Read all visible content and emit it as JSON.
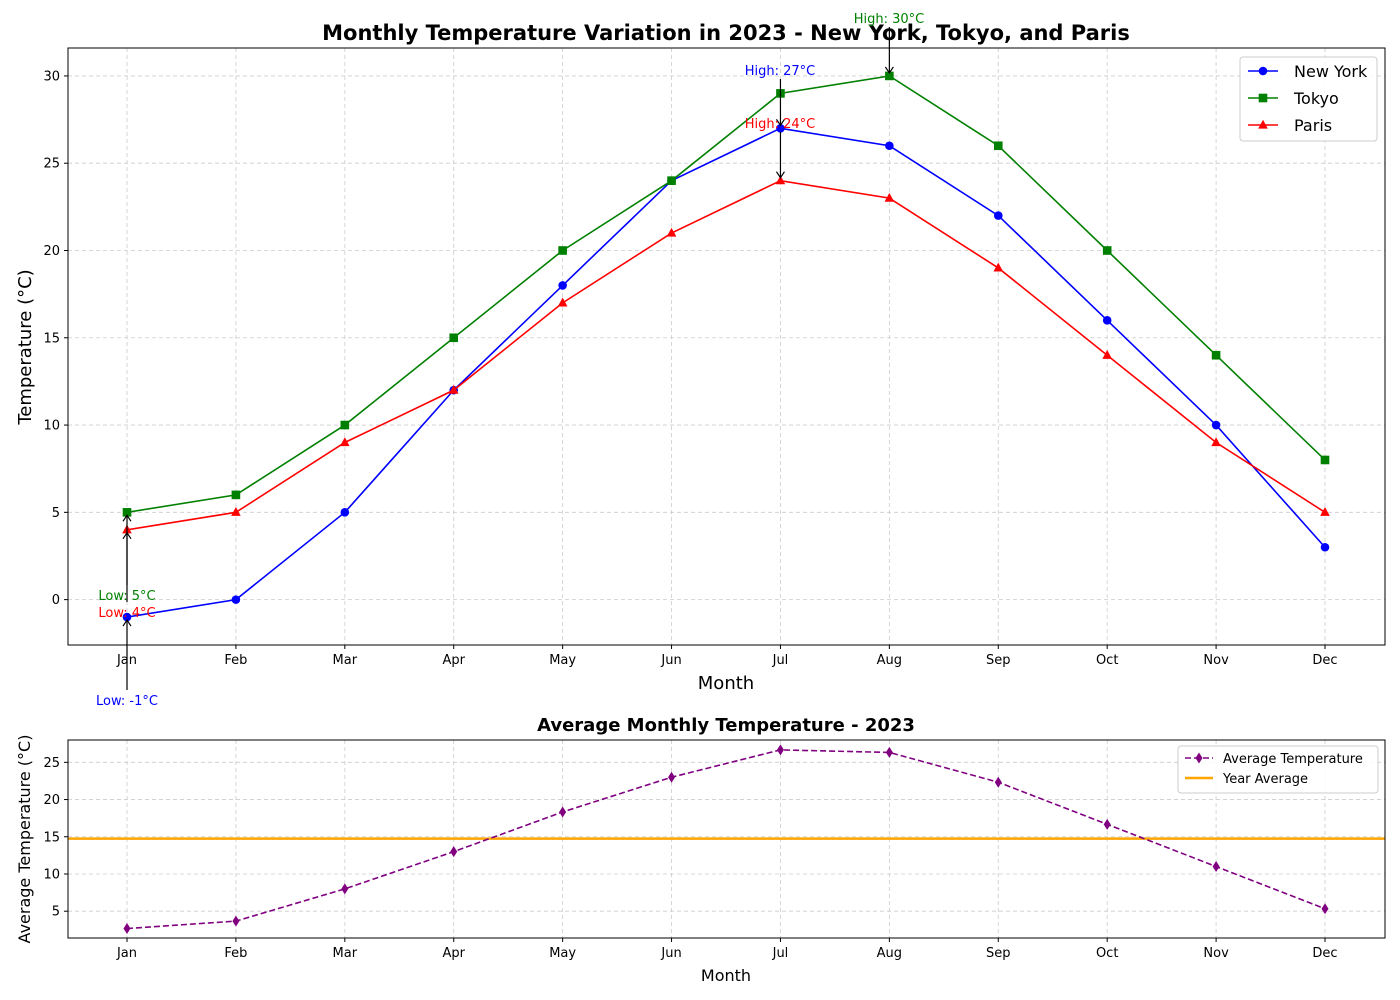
{
  "chart_data": [
    {
      "type": "line",
      "title": "Monthly Temperature Variation in 2023 - New York, Tokyo, and Paris",
      "xlabel": "Month",
      "ylabel": "Temperature (°C)",
      "categories": [
        "Jan",
        "Feb",
        "Mar",
        "Apr",
        "May",
        "Jun",
        "Jul",
        "Aug",
        "Sep",
        "Oct",
        "Nov",
        "Dec"
      ],
      "ylim": [
        -2.6,
        31.6
      ],
      "yticks": [
        0,
        5,
        10,
        15,
        20,
        25,
        30
      ],
      "grid": true,
      "legend_position": "top-right",
      "series": [
        {
          "name": "New York",
          "color": "#0000ff",
          "marker": "circle",
          "values": [
            -1,
            0,
            5,
            12,
            18,
            24,
            27,
            26,
            22,
            16,
            10,
            3
          ]
        },
        {
          "name": "Tokyo",
          "color": "#008000",
          "marker": "square",
          "values": [
            5,
            6,
            10,
            15,
            20,
            24,
            29,
            30,
            26,
            20,
            14,
            8
          ]
        },
        {
          "name": "Paris",
          "color": "#ff0000",
          "marker": "triangle",
          "values": [
            4,
            5,
            9,
            12,
            17,
            21,
            24,
            23,
            19,
            14,
            9,
            5
          ]
        }
      ],
      "annotations": [
        {
          "text": "High: 27°C",
          "series": "New York",
          "month": "Jul",
          "value": 27,
          "kind": "high",
          "color": "#0000ff"
        },
        {
          "text": "High: 30°C",
          "series": "Tokyo",
          "month": "Aug",
          "value": 30,
          "kind": "high",
          "color": "#008000"
        },
        {
          "text": "High: 24°C",
          "series": "Paris",
          "month": "Jul",
          "value": 24,
          "kind": "high",
          "color": "#ff0000"
        },
        {
          "text": "Low: -1°C",
          "series": "New York",
          "month": "Jan",
          "value": -1,
          "kind": "low",
          "color": "#0000ff"
        },
        {
          "text": "Low: 5°C",
          "series": "Tokyo",
          "month": "Jan",
          "value": 5,
          "kind": "low",
          "color": "#008000"
        },
        {
          "text": "Low: 4°C",
          "series": "Paris",
          "month": "Jan",
          "value": 4,
          "kind": "low",
          "color": "#ff0000"
        }
      ]
    },
    {
      "type": "line",
      "title": "Average Monthly Temperature - 2023",
      "xlabel": "Month",
      "ylabel": "Average Temperature (°C)",
      "categories": [
        "Jan",
        "Feb",
        "Mar",
        "Apr",
        "May",
        "Jun",
        "Jul",
        "Aug",
        "Sep",
        "Oct",
        "Nov",
        "Dec"
      ],
      "ylim": [
        1.4,
        28.0
      ],
      "yticks": [
        5,
        10,
        15,
        20,
        25
      ],
      "grid": true,
      "legend_position": "top-right",
      "series": [
        {
          "name": "Average Temperature",
          "color": "#800080",
          "marker": "thin-diamond",
          "linestyle": "dashed",
          "values": [
            2.67,
            3.67,
            8.0,
            13.0,
            18.33,
            23.0,
            26.67,
            26.33,
            22.33,
            16.67,
            11.0,
            5.33
          ]
        }
      ],
      "reference_lines": [
        {
          "name": "Year Average",
          "color": "#ffa500",
          "value": 14.75
        }
      ]
    }
  ]
}
